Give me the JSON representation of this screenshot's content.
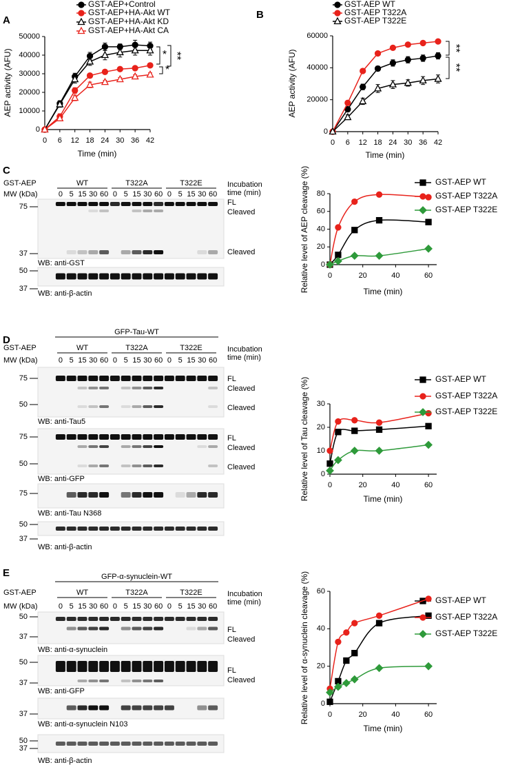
{
  "panel_labels": [
    "A",
    "B",
    "C",
    "D",
    "E"
  ],
  "chart_data": [
    {
      "type": "line",
      "x_label": "Time (min)",
      "y_label": "AEP activity (AFU)",
      "x": [
        0,
        6,
        12,
        18,
        24,
        30,
        36,
        42
      ],
      "xlim": [
        0,
        42
      ],
      "xticks": [
        0,
        6,
        12,
        18,
        24,
        30,
        36,
        42
      ],
      "ylim": [
        0,
        50000
      ],
      "yticks": [
        0,
        10000,
        20000,
        30000,
        40000,
        50000
      ],
      "legend": "top",
      "series": [
        {
          "name": "GST-AEP+Control",
          "color": "#000000",
          "marker": "circle",
          "fill": true,
          "values": [
            0,
            14000,
            28500,
            39500,
            44500,
            44500,
            45500,
            45000
          ],
          "errors": [
            500,
            1500,
            1800,
            2000,
            2000,
            1500,
            2500,
            2000
          ]
        },
        {
          "name": "GST-AEP+HA-Akt WT",
          "color": "#e8221b",
          "marker": "circle",
          "fill": true,
          "values": [
            0,
            7000,
            21000,
            29000,
            31000,
            32500,
            33000,
            34500
          ],
          "errors": [
            500,
            1500,
            1500,
            1200,
            1200,
            1000,
            1000,
            1000
          ]
        },
        {
          "name": "GST-AEP+HA-Akt KD",
          "color": "#000000",
          "marker": "triangle",
          "fill": false,
          "values": [
            0,
            13500,
            27000,
            36500,
            40000,
            41500,
            42500,
            42500
          ],
          "errors": [
            500,
            1500,
            2000,
            2000,
            2500,
            2500,
            2500,
            2500
          ]
        },
        {
          "name": "GST-AEP+HA-Akt CA",
          "color": "#e8221b",
          "marker": "triangle",
          "fill": false,
          "values": [
            0,
            6000,
            17000,
            24000,
            25500,
            27000,
            28500,
            29500
          ],
          "errors": [
            500,
            1200,
            1500,
            1500,
            1000,
            1000,
            1000,
            1000
          ]
        }
      ],
      "annotations": [
        "**",
        "*",
        "*"
      ]
    },
    {
      "type": "line",
      "x_label": "Time (min)",
      "y_label": "AEP activity (AFU)",
      "x": [
        0,
        6,
        12,
        18,
        24,
        30,
        36,
        42
      ],
      "xlim": [
        0,
        42
      ],
      "xticks": [
        0,
        6,
        12,
        18,
        24,
        30,
        36,
        42
      ],
      "ylim": [
        0,
        60000
      ],
      "yticks": [
        0,
        20000,
        40000,
        60000
      ],
      "legend": "top",
      "series": [
        {
          "name": "GST-AEP WT",
          "color": "#000000",
          "marker": "circle",
          "fill": true,
          "values": [
            0,
            14000,
            28000,
            39500,
            43000,
            45000,
            46000,
            47500
          ],
          "errors": [
            500,
            1500,
            1800,
            1500,
            2000,
            2000,
            2000,
            2000
          ]
        },
        {
          "name": "GST-AEP T322A",
          "color": "#e8221b",
          "marker": "circle",
          "fill": true,
          "values": [
            0,
            18000,
            38000,
            49000,
            52500,
            54500,
            55500,
            56500
          ],
          "errors": [
            500,
            800,
            800,
            800,
            800,
            800,
            800,
            800
          ]
        },
        {
          "name": "GST-AEP T322E",
          "color": "#000000",
          "marker": "triangle",
          "fill": false,
          "values": [
            0,
            9000,
            19000,
            27000,
            29500,
            30500,
            32000,
            33000
          ],
          "errors": [
            500,
            1500,
            2000,
            2500,
            2500,
            2000,
            2500,
            2500
          ]
        }
      ],
      "annotations": [
        "**",
        "**"
      ]
    },
    {
      "type": "scatter",
      "fit": true,
      "x_label": "Time (min)",
      "y_label": "Relative level of AEP cleavage (%)",
      "x": [
        0,
        5,
        15,
        30,
        60
      ],
      "xlim": [
        0,
        65
      ],
      "xticks": [
        0,
        20,
        40,
        60
      ],
      "ylim": [
        0,
        80
      ],
      "yticks": [
        0,
        20,
        40,
        60,
        80
      ],
      "legend": "right",
      "series": [
        {
          "name": "GST-AEP WT",
          "color": "#000000",
          "marker": "square",
          "fill": true,
          "values": [
            0,
            11,
            39,
            50,
            48
          ]
        },
        {
          "name": "GST-AEP T322A",
          "color": "#e8221b",
          "marker": "circle",
          "fill": true,
          "values": [
            0,
            42,
            71,
            79,
            76
          ]
        },
        {
          "name": "GST-AEP T322E",
          "color": "#2e9a3a",
          "marker": "diamond",
          "fill": true,
          "values": [
            0,
            4,
            10,
            10,
            18
          ]
        }
      ]
    },
    {
      "type": "scatter",
      "fit": true,
      "x_label": "Time (min)",
      "y_label": "Relative level of Tau cleavage (%)",
      "x": [
        0,
        5,
        15,
        30,
        60
      ],
      "xlim": [
        0,
        65
      ],
      "xticks": [
        0,
        20,
        40,
        60
      ],
      "ylim": [
        0,
        30
      ],
      "yticks": [
        0,
        10,
        20,
        30
      ],
      "legend": "right",
      "series": [
        {
          "name": "GST-AEP WT",
          "color": "#000000",
          "marker": "square",
          "fill": true,
          "values": [
            4.5,
            18,
            18.5,
            19,
            20.5
          ]
        },
        {
          "name": "GST-AEP T322A",
          "color": "#e8221b",
          "marker": "circle",
          "fill": true,
          "values": [
            10,
            22.5,
            23,
            22,
            26
          ]
        },
        {
          "name": "GST-AEP T322E",
          "color": "#2e9a3a",
          "marker": "diamond",
          "fill": true,
          "values": [
            1.5,
            6,
            10,
            10,
            12.5
          ]
        }
      ]
    },
    {
      "type": "scatter",
      "fit": true,
      "x_label": "Time (min)",
      "y_label": "Relative level of α-synuclein cleavage (%)",
      "x": [
        0,
        5,
        10,
        15,
        30,
        60
      ],
      "xlim": [
        0,
        65
      ],
      "xticks": [
        0,
        20,
        40,
        60
      ],
      "ylim": [
        0,
        60
      ],
      "yticks": [
        0,
        20,
        40,
        60
      ],
      "legend": "right",
      "series": [
        {
          "name": "GST-AEP WT",
          "color": "#000000",
          "marker": "square",
          "fill": true,
          "values": [
            1,
            12,
            23,
            27,
            43,
            47
          ]
        },
        {
          "name": "GST-AEP T322A",
          "color": "#e8221b",
          "marker": "circle",
          "fill": true,
          "values": [
            8,
            33,
            38,
            43,
            47,
            56
          ]
        },
        {
          "name": "GST-AEP T322E",
          "color": "#2e9a3a",
          "marker": "diamond",
          "fill": true,
          "values": [
            6,
            9,
            11,
            13,
            19,
            20
          ]
        }
      ]
    }
  ],
  "blots": [
    {
      "sample_label": "GST-AEP",
      "groups": [
        "WT",
        "T322A",
        "T322E"
      ],
      "mw_label": "MW (kDa)",
      "times": [
        0,
        5,
        15,
        30,
        60
      ],
      "time_label": [
        "Incubation",
        "time (min)"
      ],
      "strips": [
        {
          "markers": [
            75,
            37
          ],
          "labels": [
            "FL",
            "Cleaved",
            "Cleaved"
          ],
          "antibody": "WB: anti-GST"
        },
        {
          "markers": [
            50,
            37
          ],
          "antibody": "WB: anti-β-actin"
        }
      ]
    },
    {
      "header": "GFP-Tau-WT",
      "sample_label": "GST-AEP",
      "groups": [
        "WT",
        "T322A",
        "T322E"
      ],
      "mw_label": "MW (kDa)",
      "times": [
        0,
        5,
        15,
        30,
        60
      ],
      "time_label": [
        "Incubation",
        "time (min)"
      ],
      "strips": [
        {
          "markers": [
            75,
            50
          ],
          "labels": [
            "FL",
            "Cleaved",
            "Cleaved"
          ],
          "antibody": "WB: anti-Tau5"
        },
        {
          "markers": [
            75,
            50
          ],
          "labels": [
            "FL",
            "Cleaved",
            "Cleaved"
          ],
          "antibody": "WB: anti-GFP"
        },
        {
          "markers": [
            75
          ],
          "antibody": "WB: anti-Tau N368"
        },
        {
          "markers": [
            50,
            37
          ],
          "antibody": "WB: anti-β-actin"
        }
      ]
    },
    {
      "header": "GFP-α-synuclein-WT",
      "sample_label": "GST-AEP",
      "groups": [
        "WT",
        "T322A",
        "T322E"
      ],
      "mw_label": "MW (kDa)",
      "times": [
        0,
        5,
        15,
        30,
        60
      ],
      "time_label": [
        "Incubation",
        "time (min)"
      ],
      "strips": [
        {
          "markers": [
            50,
            37
          ],
          "labels": [
            "FL",
            "Cleaved"
          ],
          "antibody": "WB: anti-α-synuclein"
        },
        {
          "markers": [
            50,
            37
          ],
          "labels": [
            "FL",
            "Cleaved"
          ],
          "antibody": "WB: anti-GFP"
        },
        {
          "markers": [
            37
          ],
          "antibody": "WB: anti-α-synuclein N103"
        },
        {
          "markers": [
            50,
            37
          ],
          "antibody": "WB: anti-β-actin"
        }
      ]
    }
  ]
}
